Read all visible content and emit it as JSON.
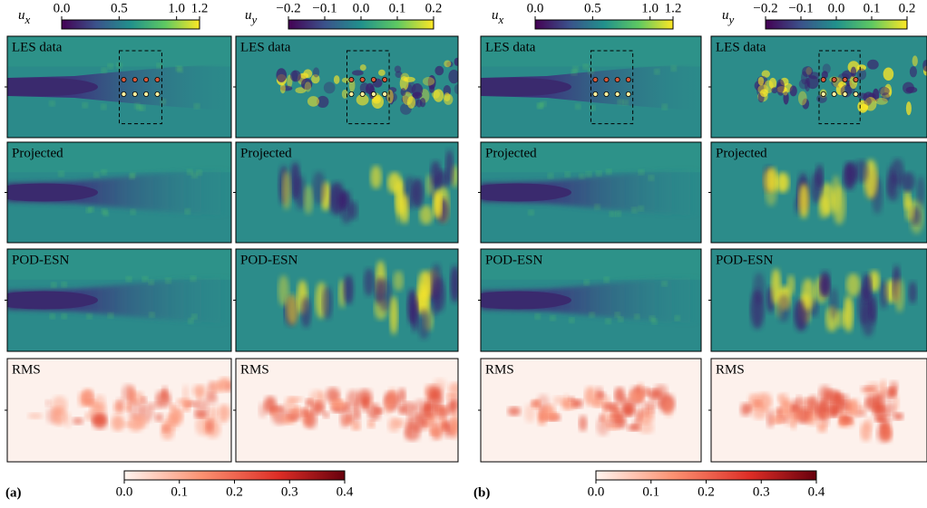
{
  "rows": [
    "LES data",
    "Projected",
    "POD-ESN",
    "RMS"
  ],
  "panels": [
    {
      "label": "(a)",
      "colorbars": [
        {
          "symbol": "u",
          "subscript": "x",
          "range": [
            0,
            1.2
          ],
          "ticks": [
            {
              "value": 0,
              "label": "0.0"
            },
            0.5,
            {
              "value": 1,
              "label": "1.0"
            },
            1.2
          ]
        },
        {
          "symbol": "u",
          "subscript": "y",
          "range": [
            -0.2,
            0.2
          ],
          "ticks": [
            {
              "value": -0.2,
              "label": "−0.2"
            },
            {
              "value": -0.1,
              "label": "−0.1"
            },
            {
              "value": 0,
              "label": "0.0"
            },
            0.1,
            0.2
          ]
        }
      ],
      "rms_colorbar": {
        "range": [
          0,
          0.4
        ],
        "ticks": [
          {
            "value": 0,
            "label": "0.0"
          },
          0.1,
          0.2,
          0.3,
          0.4
        ]
      }
    },
    {
      "label": "(b)",
      "colorbars": [
        {
          "symbol": "u",
          "subscript": "x",
          "range": [
            0,
            1.2
          ],
          "ticks": [
            {
              "value": 0,
              "label": "0.0"
            },
            0.5,
            {
              "value": 1,
              "label": "1.0"
            },
            1.2
          ]
        },
        {
          "symbol": "u",
          "subscript": "y",
          "range": [
            -0.2,
            0.2
          ],
          "ticks": [
            {
              "value": -0.2,
              "label": "−0.2"
            },
            {
              "value": -0.1,
              "label": "−0.1"
            },
            {
              "value": 0,
              "label": "0.0"
            },
            0.1,
            0.2
          ]
        }
      ],
      "rms_colorbar": {
        "range": [
          0,
          0.4
        ],
        "ticks": [
          {
            "value": 0,
            "label": "0.0"
          },
          0.1,
          0.2,
          0.3,
          0.4
        ]
      }
    }
  ]
}
